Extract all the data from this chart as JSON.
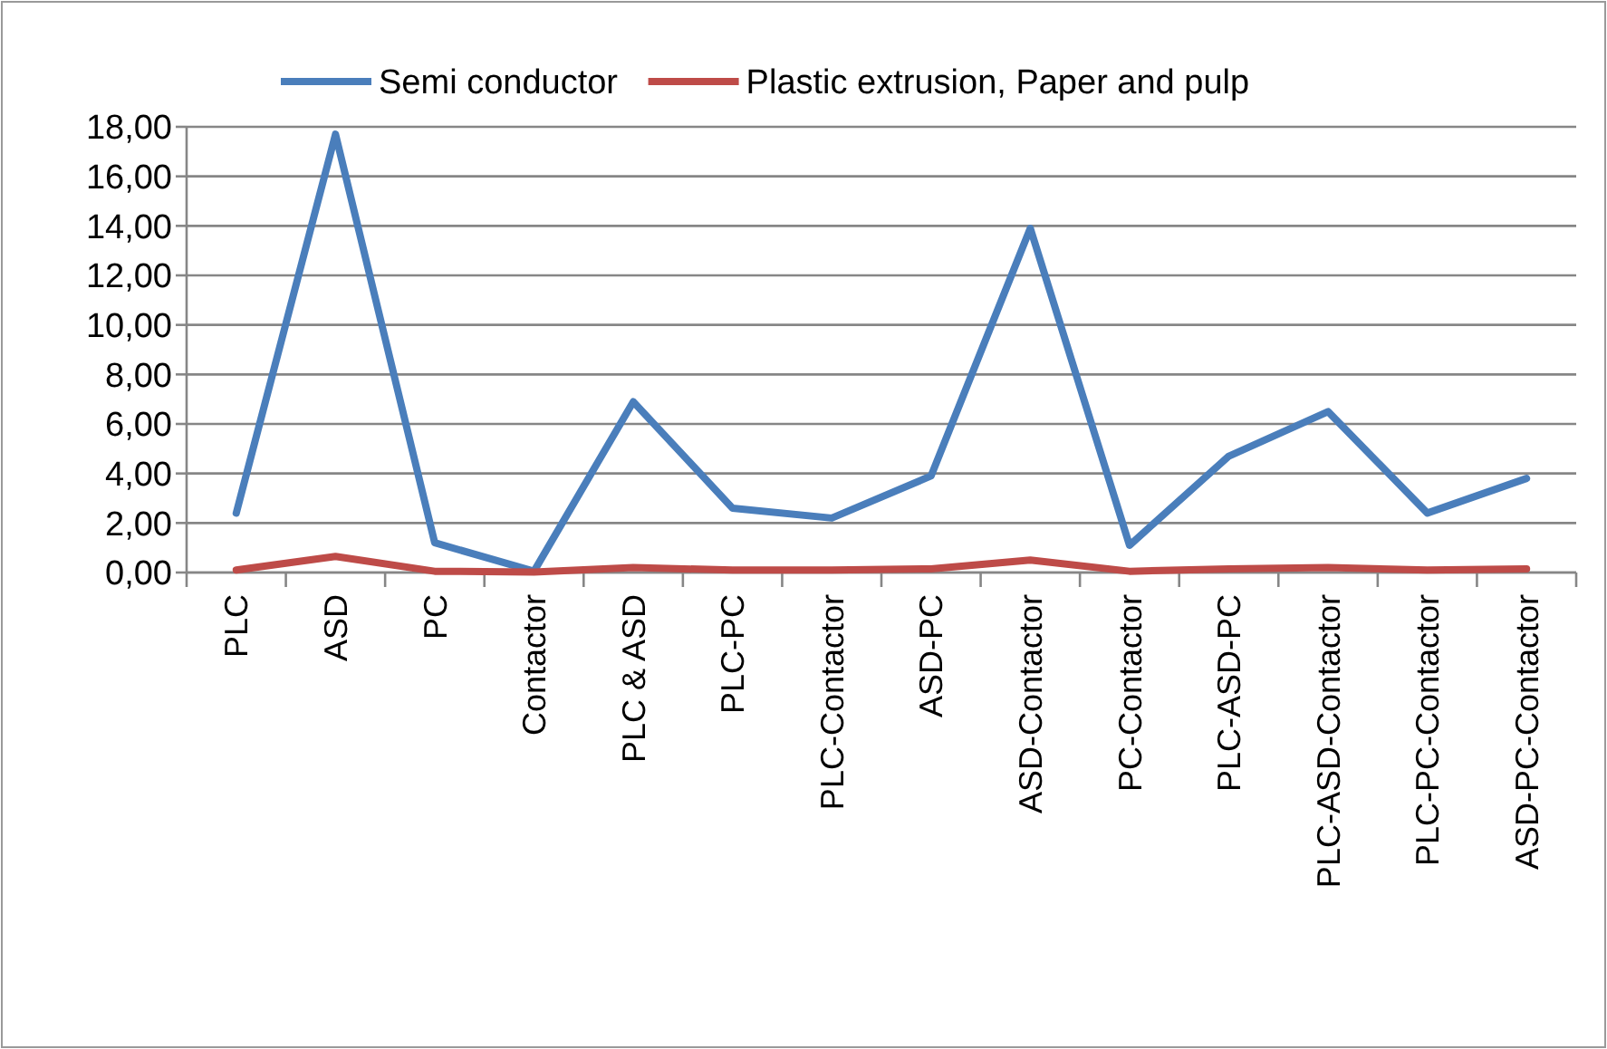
{
  "chart_data": {
    "type": "line",
    "categories": [
      "PLC",
      "ASD",
      "PC",
      "Contactor",
      "PLC & ASD",
      "PLC-PC",
      "PLC-Contactor",
      "ASD-PC",
      "ASD-Contactor",
      "PC-Contactor",
      "PLC-ASD-PC",
      "PLC-ASD-Contactor",
      "PLC-PC-Contactor",
      "ASD-PC-Contactor"
    ],
    "series": [
      {
        "name": "Semi conductor",
        "color": "#4a7ebb",
        "values": [
          2.4,
          17.7,
          1.2,
          0.05,
          6.9,
          2.6,
          2.2,
          3.9,
          13.9,
          1.1,
          4.7,
          6.5,
          2.4,
          3.8
        ]
      },
      {
        "name": "Plastic extrusion, Paper and pulp",
        "color": "#be4b48",
        "values": [
          0.1,
          0.65,
          0.05,
          0.02,
          0.2,
          0.1,
          0.1,
          0.15,
          0.5,
          0.05,
          0.15,
          0.2,
          0.1,
          0.15
        ]
      }
    ],
    "ylim": [
      0,
      18
    ],
    "yticks": [
      {
        "value": 0,
        "label": "0,00"
      },
      {
        "value": 2,
        "label": "2,00"
      },
      {
        "value": 4,
        "label": "4,00"
      },
      {
        "value": 6,
        "label": "6,00"
      },
      {
        "value": 8,
        "label": "8,00"
      },
      {
        "value": 10,
        "label": "10,00"
      },
      {
        "value": 12,
        "label": "12,00"
      },
      {
        "value": 14,
        "label": "14,00"
      },
      {
        "value": 16,
        "label": "16,00"
      },
      {
        "value": 18,
        "label": "18,00"
      }
    ],
    "grid": "y",
    "legend": "top",
    "marker": "none",
    "line_style": "solid"
  }
}
